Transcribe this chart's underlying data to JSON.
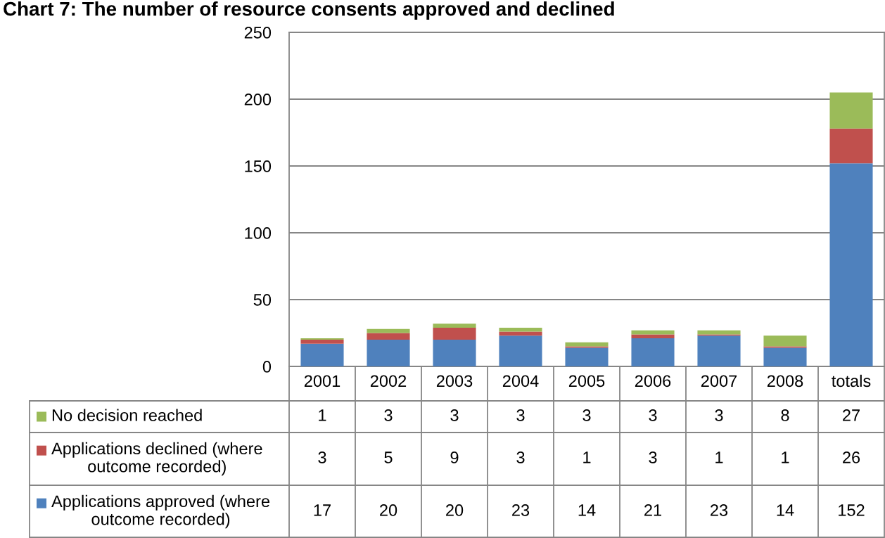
{
  "chart_data": {
    "type": "bar",
    "title": "Chart 7: The number of resource consents approved and declined",
    "categories": [
      "2001",
      "2002",
      "2003",
      "2004",
      "2005",
      "2006",
      "2007",
      "2008",
      "totals"
    ],
    "series": [
      {
        "name": "Applications approved (where outcome recorded)",
        "color": "#4f81bd",
        "values": [
          17,
          20,
          20,
          23,
          14,
          21,
          23,
          14,
          152
        ]
      },
      {
        "name": "Applications declined (where outcome recorded)",
        "color": "#c0504d",
        "values": [
          3,
          5,
          9,
          3,
          1,
          3,
          1,
          1,
          26
        ]
      },
      {
        "name": "No decision reached",
        "color": "#9bbb59",
        "values": [
          1,
          3,
          3,
          3,
          3,
          3,
          3,
          8,
          27
        ]
      }
    ],
    "stacked": true,
    "ylim": [
      0,
      250
    ],
    "yticks": [
      0,
      50,
      100,
      150,
      200,
      250
    ],
    "grid": "y",
    "legend": "bottom left",
    "data_labels": true
  }
}
